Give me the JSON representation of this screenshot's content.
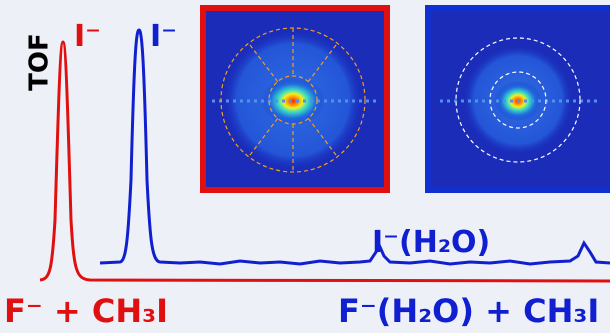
{
  "axis_label": "TOF",
  "peaks": {
    "red": "I⁻",
    "blue": "I⁻",
    "cluster": "I⁻(H₂O)"
  },
  "reactions": {
    "red": "F⁻ + CH₃I",
    "blue": "F⁻(H₂O) + CH₃I"
  }
}
